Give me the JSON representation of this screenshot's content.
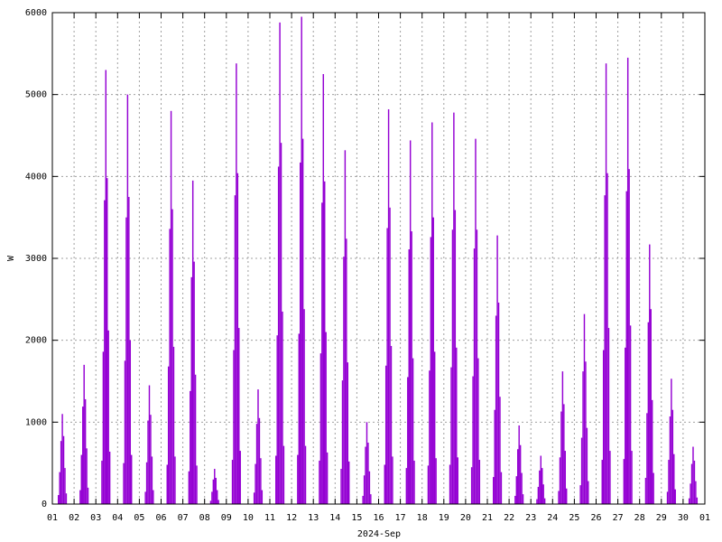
{
  "chart_data": {
    "type": "impulse",
    "xlabel": "2024-Sep",
    "ylabel": "W",
    "color": "#9400d3",
    "grid": true,
    "xlim": [
      1,
      31
    ],
    "xticks": [
      {
        "value": 1,
        "label": "01"
      },
      {
        "value": 2,
        "label": "02"
      },
      {
        "value": 3,
        "label": "03"
      },
      {
        "value": 4,
        "label": "04"
      },
      {
        "value": 5,
        "label": "05"
      },
      {
        "value": 6,
        "label": "06"
      },
      {
        "value": 7,
        "label": "07"
      },
      {
        "value": 8,
        "label": "08"
      },
      {
        "value": 9,
        "label": "09"
      },
      10,
      11,
      12,
      13,
      14,
      15,
      16,
      17,
      18,
      19,
      20,
      21,
      22,
      23,
      24,
      25,
      26,
      27,
      28,
      29,
      30,
      {
        "value": 31,
        "label": "01"
      }
    ],
    "ylim": [
      0,
      6000
    ],
    "yticks": [
      0,
      1000,
      2000,
      3000,
      4000,
      5000,
      6000
    ],
    "x": [
      1.28,
      1.34,
      1.4,
      1.46,
      1.52,
      1.58,
      1.64,
      2.28,
      2.34,
      2.4,
      2.46,
      2.52,
      2.58,
      2.64,
      3.28,
      3.34,
      3.4,
      3.46,
      3.52,
      3.58,
      3.64,
      4.28,
      4.34,
      4.4,
      4.46,
      4.52,
      4.58,
      4.64,
      5.28,
      5.34,
      5.4,
      5.46,
      5.52,
      5.58,
      5.64,
      6.28,
      6.34,
      6.4,
      6.46,
      6.52,
      6.58,
      6.64,
      7.28,
      7.34,
      7.4,
      7.46,
      7.52,
      7.58,
      7.64,
      8.28,
      8.34,
      8.4,
      8.46,
      8.52,
      8.58,
      8.64,
      9.28,
      9.34,
      9.4,
      9.46,
      9.52,
      9.58,
      9.64,
      10.28,
      10.34,
      10.4,
      10.46,
      10.52,
      10.58,
      10.64,
      11.28,
      11.34,
      11.4,
      11.46,
      11.52,
      11.58,
      11.64,
      12.28,
      12.34,
      12.4,
      12.46,
      12.52,
      12.58,
      12.64,
      13.28,
      13.34,
      13.4,
      13.46,
      13.52,
      13.58,
      13.64,
      14.28,
      14.34,
      14.4,
      14.46,
      14.52,
      14.58,
      14.64,
      15.28,
      15.34,
      15.4,
      15.46,
      15.52,
      15.58,
      15.64,
      16.28,
      16.34,
      16.4,
      16.46,
      16.52,
      16.58,
      16.64,
      17.28,
      17.34,
      17.4,
      17.46,
      17.52,
      17.58,
      17.64,
      18.28,
      18.34,
      18.4,
      18.46,
      18.52,
      18.58,
      18.64,
      19.28,
      19.34,
      19.4,
      19.46,
      19.52,
      19.58,
      19.64,
      20.28,
      20.34,
      20.4,
      20.46,
      20.52,
      20.58,
      20.64,
      21.28,
      21.34,
      21.4,
      21.46,
      21.52,
      21.58,
      21.64,
      22.28,
      22.34,
      22.4,
      22.46,
      22.52,
      22.58,
      22.64,
      23.28,
      23.34,
      23.4,
      23.46,
      23.52,
      23.58,
      23.64,
      24.28,
      24.34,
      24.4,
      24.46,
      24.52,
      24.58,
      24.64,
      25.28,
      25.34,
      25.4,
      25.46,
      25.52,
      25.58,
      25.64,
      26.28,
      26.34,
      26.4,
      26.46,
      26.52,
      26.58,
      26.64,
      27.28,
      27.34,
      27.4,
      27.46,
      27.52,
      27.58,
      27.64,
      28.28,
      28.34,
      28.4,
      28.46,
      28.52,
      28.58,
      28.64,
      29.28,
      29.34,
      29.4,
      29.46,
      29.52,
      29.58,
      29.64,
      30.28,
      30.34,
      30.4,
      30.46,
      30.52,
      30.58,
      30.64
    ],
    "values": [
      110,
      390,
      770,
      1100,
      830,
      440,
      130,
      170,
      600,
      1190,
      1700,
      1280,
      680,
      200,
      530,
      1860,
      3710,
      5300,
      3980,
      2120,
      640,
      500,
      1750,
      3500,
      5000,
      3750,
      2000,
      600,
      150,
      510,
      1020,
      1450,
      1090,
      580,
      170,
      480,
      1680,
      3360,
      4800,
      3600,
      1920,
      580,
      400,
      1380,
      2770,
      3950,
      2960,
      1580,
      470,
      40,
      150,
      300,
      430,
      320,
      170,
      50,
      540,
      1880,
      3770,
      5380,
      4040,
      2150,
      650,
      140,
      490,
      980,
      1400,
      1050,
      560,
      170,
      590,
      2060,
      4120,
      5880,
      4410,
      2350,
      710,
      600,
      2080,
      4170,
      5950,
      4460,
      2380,
      710,
      530,
      1840,
      3680,
      5250,
      3940,
      2100,
      630,
      430,
      1510,
      3020,
      4320,
      3240,
      1730,
      520,
      100,
      350,
      700,
      1000,
      750,
      400,
      120,
      480,
      1690,
      3370,
      4820,
      3620,
      1930,
      580,
      440,
      1550,
      3110,
      4440,
      3330,
      1780,
      530,
      470,
      1630,
      3260,
      4660,
      3500,
      1860,
      560,
      480,
      1670,
      3350,
      4780,
      3590,
      1910,
      570,
      450,
      1560,
      3120,
      4460,
      3350,
      1780,
      540,
      330,
      1150,
      2300,
      3280,
      2460,
      1310,
      390,
      100,
      340,
      670,
      960,
      720,
      380,
      120,
      60,
      210,
      410,
      590,
      440,
      240,
      70,
      160,
      570,
      1130,
      1620,
      1220,
      650,
      190,
      230,
      810,
      1620,
      2320,
      1740,
      930,
      280,
      540,
      1880,
      3770,
      5380,
      4040,
      2150,
      650,
      550,
      1910,
      3820,
      5450,
      4090,
      2180,
      650,
      320,
      1110,
      2220,
      3170,
      2380,
      1270,
      380,
      150,
      540,
      1070,
      1530,
      1150,
      610,
      180,
      70,
      250,
      490,
      700,
      530,
      280,
      80
    ]
  }
}
